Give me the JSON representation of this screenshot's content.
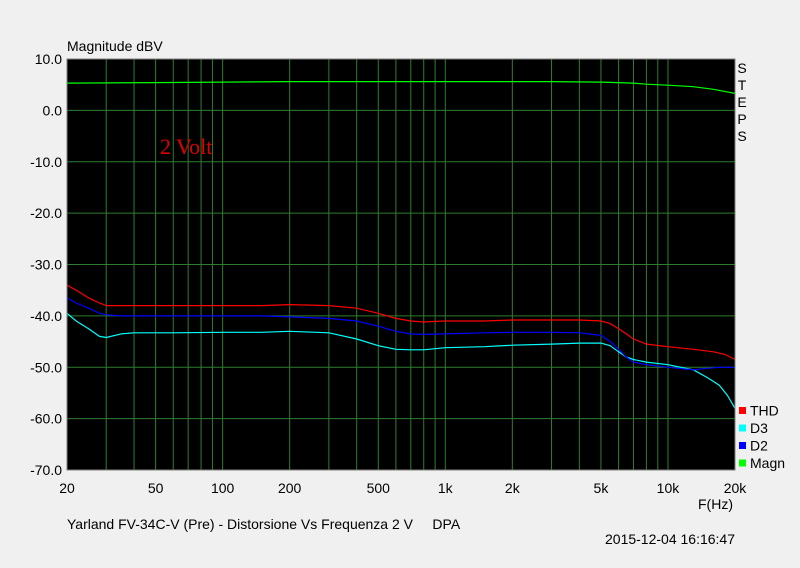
{
  "chart_data": {
    "type": "line",
    "ylabel": "Magnitude dBV",
    "xlabel": "F(Hz)",
    "x_scale": "log",
    "xlim": [
      20,
      20000
    ],
    "ylim": [
      -70,
      10
    ],
    "x_ticks": [
      20,
      50,
      100,
      200,
      500,
      1000,
      2000,
      5000,
      10000,
      20000
    ],
    "x_tick_labels": [
      "20",
      "50",
      "100",
      "200",
      "500",
      "1k",
      "2k",
      "5k",
      "10k",
      "20k"
    ],
    "y_ticks": [
      10,
      0,
      -10,
      -20,
      -30,
      -40,
      -50,
      -60,
      -70
    ],
    "y_tick_labels": [
      "10.0",
      "0.0",
      "-10.0",
      "-20.0",
      "-30.0",
      "-40.0",
      "-50.0",
      "-60.0",
      "-70.0"
    ],
    "grid": true,
    "annotation": "2 Volt",
    "right_label": "STEPS",
    "footer_left": "Yarland FV-34C-V (Pre) - Distorsione Vs Frequenza 2 V     DPA",
    "footer_right": "2015-12-04 16:16:47",
    "legend_position": "bottom-right",
    "series": [
      {
        "name": "THD",
        "color": "#ff0000",
        "x": [
          20,
          22,
          25,
          28,
          30,
          35,
          40,
          60,
          100,
          150,
          200,
          300,
          400,
          500,
          600,
          700,
          800,
          1000,
          1500,
          2000,
          3000,
          4000,
          5000,
          5500,
          6000,
          6500,
          7000,
          8000,
          10000,
          13000,
          16000,
          18000,
          20000
        ],
        "values": [
          -34,
          -35,
          -36.5,
          -37.5,
          -38,
          -38,
          -38,
          -38,
          -38,
          -38,
          -37.8,
          -38,
          -38.5,
          -39.5,
          -40.5,
          -41,
          -41.2,
          -41,
          -41,
          -40.8,
          -40.8,
          -40.8,
          -41,
          -41.5,
          -42.5,
          -43.5,
          -44.5,
          -45.5,
          -46,
          -46.5,
          -47,
          -47.5,
          -48.5
        ]
      },
      {
        "name": "D3",
        "color": "#00ffff",
        "x": [
          20,
          22,
          25,
          28,
          30,
          35,
          40,
          60,
          100,
          150,
          200,
          300,
          400,
          500,
          600,
          700,
          800,
          1000,
          1500,
          2000,
          3000,
          4000,
          5000,
          5500,
          6000,
          6500,
          7000,
          8000,
          10000,
          13000,
          15000,
          17000,
          18500,
          20000
        ],
        "values": [
          -39.5,
          -41,
          -42.5,
          -44,
          -44.2,
          -43.5,
          -43.3,
          -43.3,
          -43.2,
          -43.2,
          -43,
          -43.3,
          -44.5,
          -45.8,
          -46.5,
          -46.6,
          -46.6,
          -46.2,
          -46,
          -45.7,
          -45.5,
          -45.3,
          -45.3,
          -45.8,
          -47,
          -48,
          -48.5,
          -49,
          -49.5,
          -50.5,
          -52,
          -53.5,
          -55.5,
          -58
        ]
      },
      {
        "name": "D2",
        "color": "#0000ff",
        "x": [
          20,
          22,
          25,
          28,
          30,
          35,
          40,
          60,
          100,
          150,
          200,
          300,
          400,
          500,
          600,
          700,
          800,
          1000,
          1500,
          2000,
          3000,
          4000,
          5000,
          5500,
          6000,
          6500,
          7000,
          8000,
          10000,
          13000,
          15000,
          17000,
          20000
        ],
        "values": [
          -36.5,
          -37.5,
          -38.5,
          -39.5,
          -39.8,
          -40,
          -40,
          -40,
          -40,
          -40,
          -40.2,
          -40.5,
          -41,
          -42,
          -43,
          -43.5,
          -43.6,
          -43.5,
          -43.3,
          -43.2,
          -43.2,
          -43.3,
          -43.8,
          -45,
          -46.5,
          -48,
          -49,
          -49.5,
          -50,
          -50.5,
          -50.2,
          -50,
          -50
        ]
      },
      {
        "name": "Magn",
        "color": "#00ff00",
        "x": [
          20,
          50,
          100,
          200,
          500,
          1000,
          2000,
          3000,
          5000,
          7000,
          8000,
          10000,
          13000,
          16000,
          20000
        ],
        "values": [
          5.3,
          5.4,
          5.5,
          5.6,
          5.6,
          5.6,
          5.6,
          5.6,
          5.5,
          5.3,
          5.1,
          4.9,
          4.6,
          4.1,
          3.3
        ]
      }
    ]
  }
}
